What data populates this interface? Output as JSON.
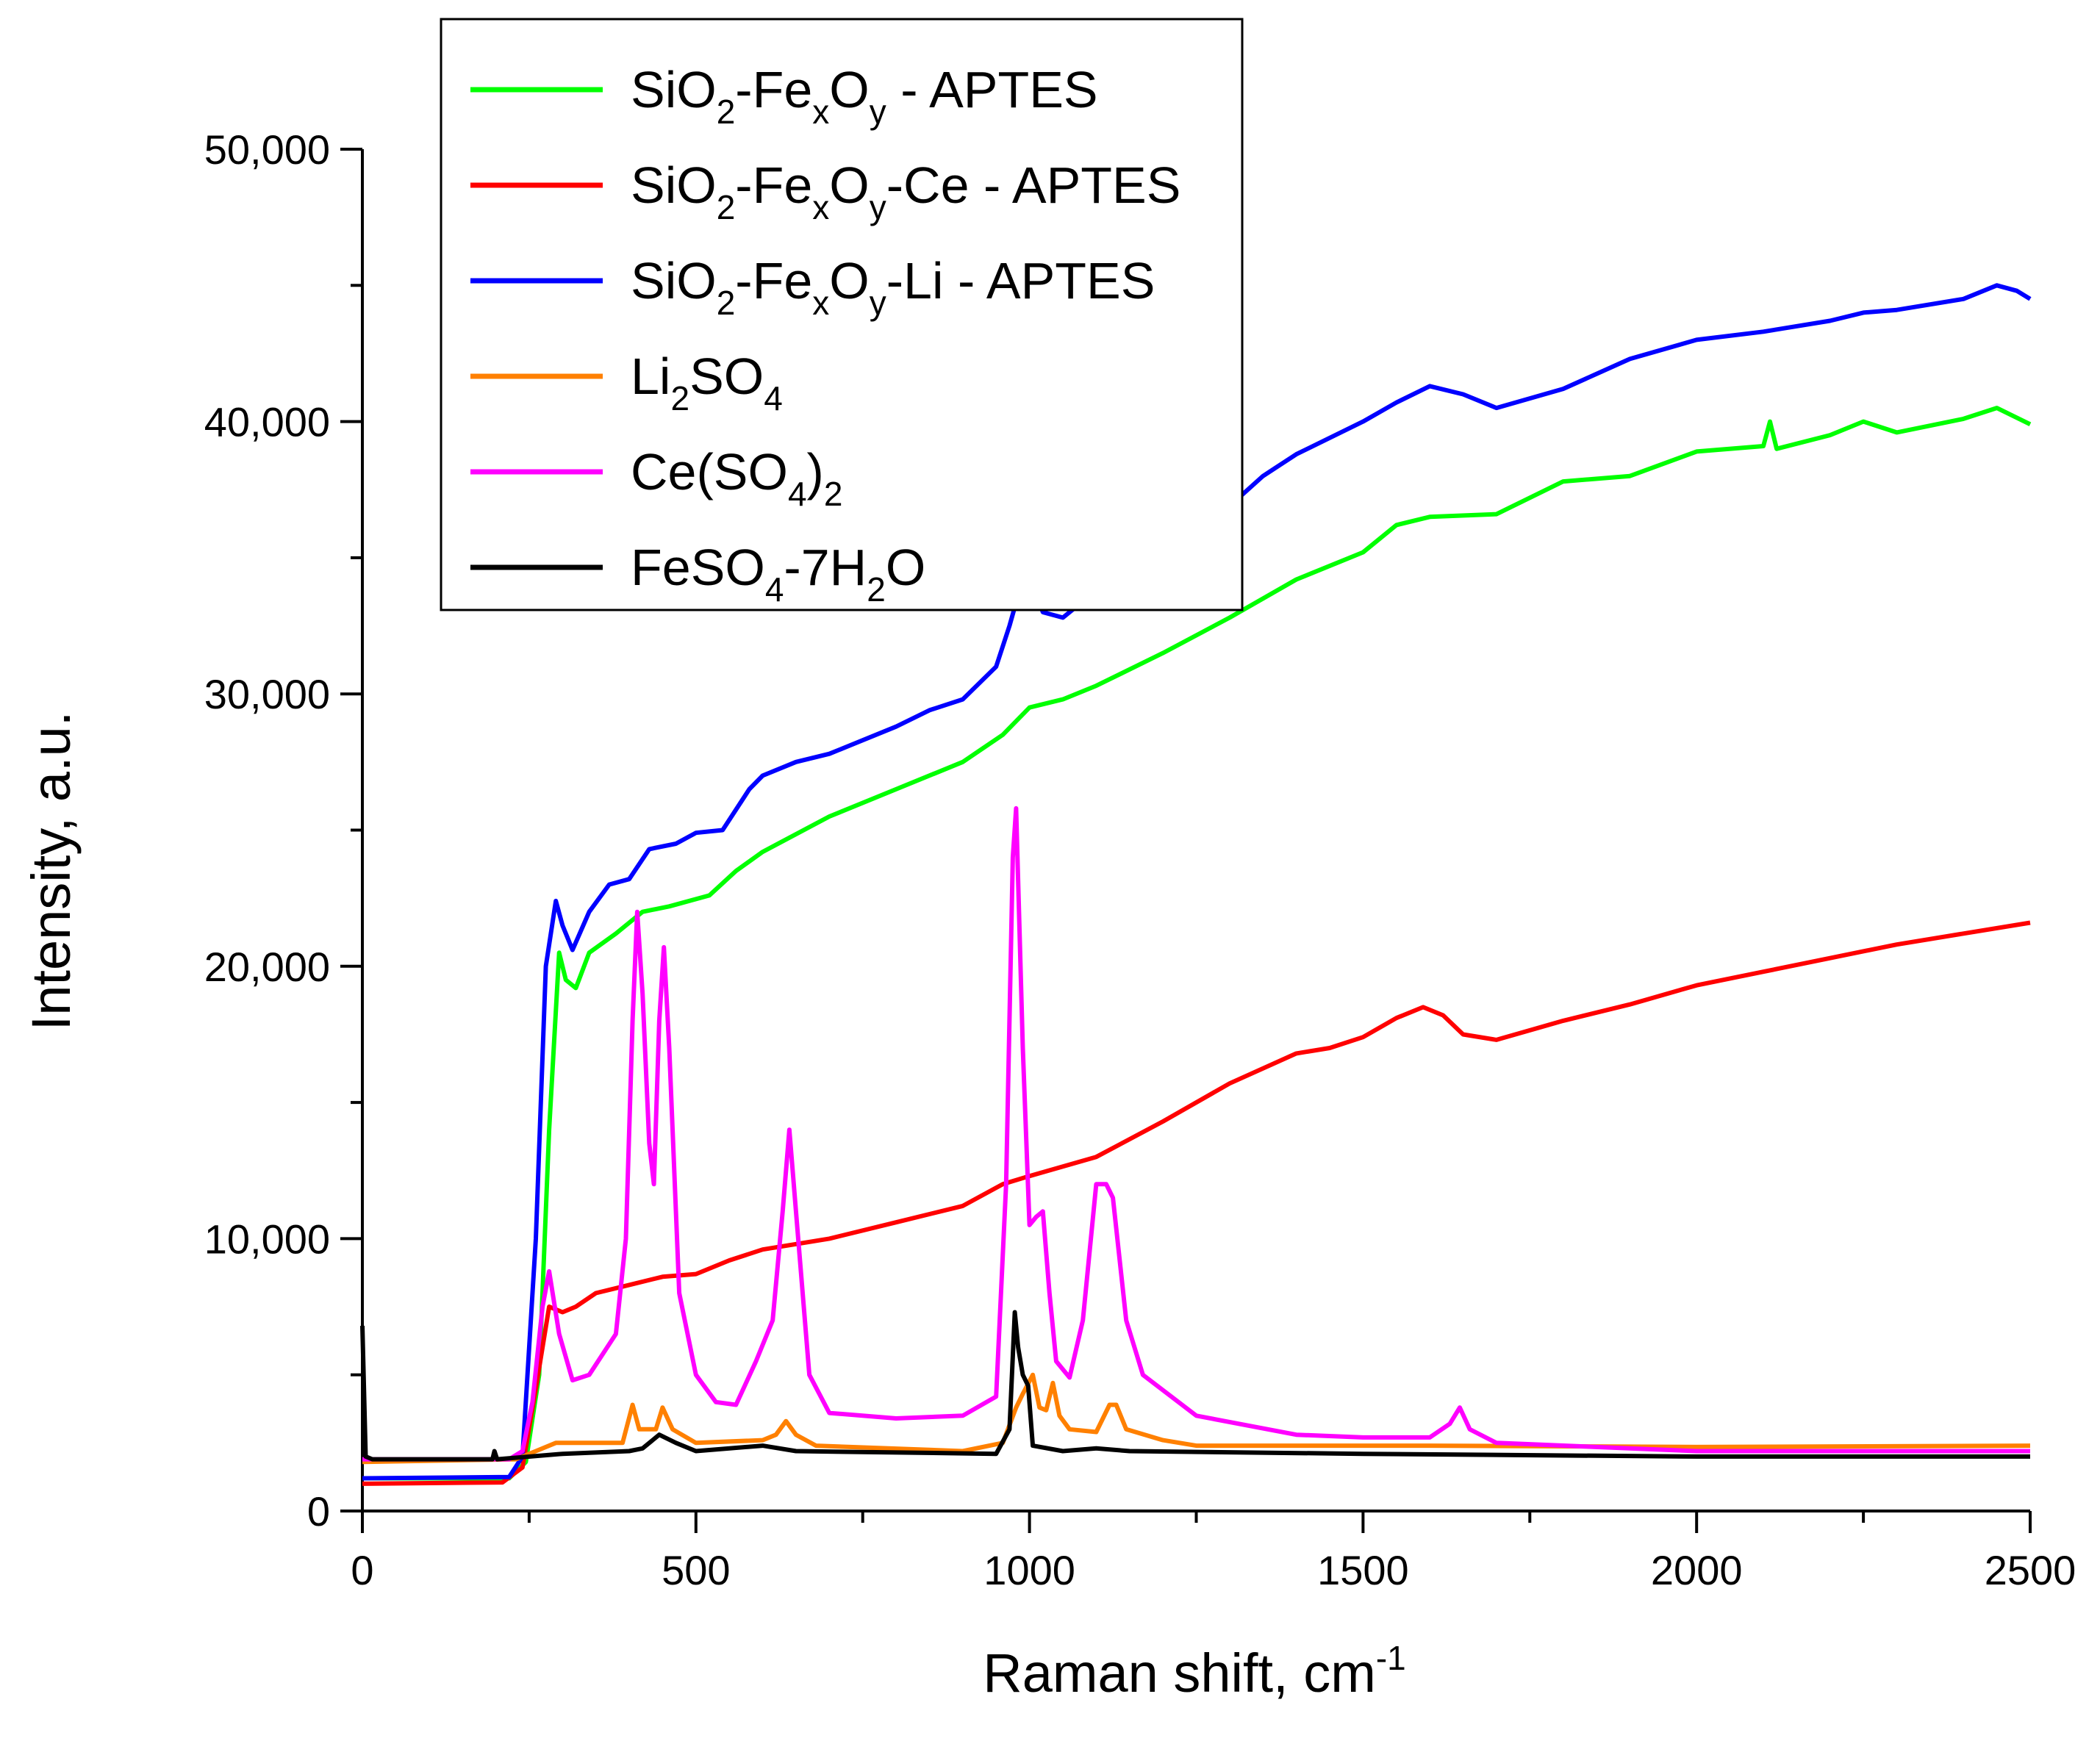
{
  "chart_data": {
    "type": "line",
    "xlabel": "Raman shift, cm",
    "xlabel_superscript": "-1",
    "ylabel": "Intensity, a.u.",
    "xlim": [
      0,
      2500
    ],
    "ylim": [
      0,
      50000
    ],
    "x_ticks": [
      0,
      500,
      1000,
      1500,
      2000,
      2500
    ],
    "x_tick_labels": [
      "0",
      "500",
      "1000",
      "1500",
      "2000",
      "2500"
    ],
    "y_ticks": [
      0,
      10000,
      20000,
      30000,
      40000,
      50000
    ],
    "y_tick_labels": [
      "0",
      "10,000",
      "20,000",
      "30,000",
      "40,000",
      "50,000"
    ],
    "grid": false,
    "legend_position": "top-center",
    "series": [
      {
        "name": "SiO2-FexOy - APTES",
        "label_parts": [
          [
            "SiO",
            ""
          ],
          [
            "2",
            "sub"
          ],
          [
            "-Fe",
            ""
          ],
          [
            "x",
            "sub"
          ],
          [
            "O",
            ""
          ],
          [
            "y",
            "sub"
          ],
          [
            " - APTES",
            ""
          ]
        ],
        "color": "#00ff00",
        "points": [
          [
            0,
            1200
          ],
          [
            220,
            1200
          ],
          [
            245,
            1800
          ],
          [
            265,
            5000
          ],
          [
            280,
            14000
          ],
          [
            295,
            20500
          ],
          [
            305,
            19500
          ],
          [
            320,
            19200
          ],
          [
            340,
            20500
          ],
          [
            380,
            21200
          ],
          [
            420,
            22000
          ],
          [
            460,
            22200
          ],
          [
            520,
            22600
          ],
          [
            560,
            23500
          ],
          [
            600,
            24200
          ],
          [
            700,
            25500
          ],
          [
            800,
            26500
          ],
          [
            900,
            27500
          ],
          [
            960,
            28500
          ],
          [
            1000,
            29500
          ],
          [
            1050,
            29800
          ],
          [
            1100,
            30300
          ],
          [
            1200,
            31500
          ],
          [
            1300,
            32800
          ],
          [
            1400,
            34200
          ],
          [
            1500,
            35200
          ],
          [
            1550,
            36200
          ],
          [
            1600,
            36500
          ],
          [
            1700,
            36600
          ],
          [
            1800,
            37800
          ],
          [
            1900,
            38000
          ],
          [
            2000,
            38900
          ],
          [
            2100,
            39100
          ],
          [
            2110,
            40000
          ],
          [
            2120,
            39000
          ],
          [
            2200,
            39500
          ],
          [
            2250,
            40000
          ],
          [
            2300,
            39600
          ],
          [
            2400,
            40100
          ],
          [
            2450,
            40500
          ],
          [
            2500,
            39900
          ]
        ]
      },
      {
        "name": "SiO2-FexOy-Ce - APTES",
        "label_parts": [
          [
            "SiO",
            ""
          ],
          [
            "2",
            "sub"
          ],
          [
            "-Fe",
            ""
          ],
          [
            "x",
            "sub"
          ],
          [
            "O",
            ""
          ],
          [
            "y",
            "sub"
          ],
          [
            "-Ce - APTES",
            ""
          ]
        ],
        "color": "#ff0000",
        "points": [
          [
            0,
            1000
          ],
          [
            210,
            1050
          ],
          [
            240,
            1600
          ],
          [
            260,
            4500
          ],
          [
            280,
            7500
          ],
          [
            300,
            7300
          ],
          [
            320,
            7500
          ],
          [
            350,
            8000
          ],
          [
            400,
            8300
          ],
          [
            450,
            8600
          ],
          [
            500,
            8700
          ],
          [
            550,
            9200
          ],
          [
            600,
            9600
          ],
          [
            700,
            10000
          ],
          [
            800,
            10600
          ],
          [
            900,
            11200
          ],
          [
            960,
            12000
          ],
          [
            1000,
            12300
          ],
          [
            1100,
            13000
          ],
          [
            1200,
            14300
          ],
          [
            1300,
            15700
          ],
          [
            1400,
            16800
          ],
          [
            1450,
            17000
          ],
          [
            1500,
            17400
          ],
          [
            1550,
            18100
          ],
          [
            1590,
            18500
          ],
          [
            1620,
            18200
          ],
          [
            1650,
            17500
          ],
          [
            1700,
            17300
          ],
          [
            1800,
            18000
          ],
          [
            1900,
            18600
          ],
          [
            2000,
            19300
          ],
          [
            2100,
            19800
          ],
          [
            2200,
            20300
          ],
          [
            2300,
            20800
          ],
          [
            2400,
            21200
          ],
          [
            2500,
            21600
          ]
        ]
      },
      {
        "name": "SiO2-FexOy-Li - APTES",
        "label_parts": [
          [
            "SiO",
            ""
          ],
          [
            "2",
            "sub"
          ],
          [
            "-Fe",
            ""
          ],
          [
            "x",
            "sub"
          ],
          [
            "O",
            ""
          ],
          [
            "y",
            "sub"
          ],
          [
            "-Li - APTES",
            ""
          ]
        ],
        "color": "#0000ff",
        "points": [
          [
            0,
            1200
          ],
          [
            220,
            1250
          ],
          [
            240,
            2000
          ],
          [
            260,
            10000
          ],
          [
            275,
            20000
          ],
          [
            290,
            22400
          ],
          [
            300,
            21500
          ],
          [
            315,
            20600
          ],
          [
            340,
            22000
          ],
          [
            370,
            23000
          ],
          [
            400,
            23200
          ],
          [
            430,
            24300
          ],
          [
            470,
            24500
          ],
          [
            500,
            24900
          ],
          [
            540,
            25000
          ],
          [
            580,
            26500
          ],
          [
            600,
            27000
          ],
          [
            650,
            27500
          ],
          [
            700,
            27800
          ],
          [
            800,
            28800
          ],
          [
            850,
            29400
          ],
          [
            900,
            29800
          ],
          [
            950,
            31000
          ],
          [
            970,
            32500
          ],
          [
            985,
            33800
          ],
          [
            995,
            33500
          ],
          [
            1000,
            34300
          ],
          [
            1020,
            33000
          ],
          [
            1050,
            32800
          ],
          [
            1100,
            33800
          ],
          [
            1200,
            35300
          ],
          [
            1300,
            36900
          ],
          [
            1350,
            38000
          ],
          [
            1400,
            38800
          ],
          [
            1500,
            40000
          ],
          [
            1550,
            40700
          ],
          [
            1600,
            41300
          ],
          [
            1650,
            41000
          ],
          [
            1700,
            40500
          ],
          [
            1800,
            41200
          ],
          [
            1900,
            42300
          ],
          [
            2000,
            43000
          ],
          [
            2100,
            43300
          ],
          [
            2200,
            43700
          ],
          [
            2250,
            44000
          ],
          [
            2300,
            44100
          ],
          [
            2400,
            44500
          ],
          [
            2450,
            45000
          ],
          [
            2480,
            44800
          ],
          [
            2500,
            44500
          ]
        ]
      },
      {
        "name": "Li2SO4",
        "label_parts": [
          [
            "Li",
            ""
          ],
          [
            "2",
            "sub"
          ],
          [
            "SO",
            ""
          ],
          [
            "4",
            "sub"
          ]
        ],
        "color": "#ff8000",
        "points": [
          [
            0,
            1800
          ],
          [
            230,
            1900
          ],
          [
            260,
            2200
          ],
          [
            290,
            2500
          ],
          [
            390,
            2500
          ],
          [
            405,
            3900
          ],
          [
            415,
            3000
          ],
          [
            440,
            3000
          ],
          [
            450,
            3800
          ],
          [
            465,
            3000
          ],
          [
            500,
            2500
          ],
          [
            600,
            2600
          ],
          [
            620,
            2800
          ],
          [
            635,
            3300
          ],
          [
            650,
            2800
          ],
          [
            680,
            2400
          ],
          [
            900,
            2200
          ],
          [
            960,
            2500
          ],
          [
            980,
            3800
          ],
          [
            990,
            4300
          ],
          [
            1005,
            5000
          ],
          [
            1015,
            3800
          ],
          [
            1025,
            3700
          ],
          [
            1035,
            4700
          ],
          [
            1045,
            3500
          ],
          [
            1060,
            3000
          ],
          [
            1100,
            2900
          ],
          [
            1120,
            3900
          ],
          [
            1130,
            3900
          ],
          [
            1145,
            3000
          ],
          [
            1200,
            2600
          ],
          [
            1250,
            2400
          ],
          [
            1600,
            2400
          ],
          [
            2000,
            2350
          ],
          [
            2500,
            2400
          ]
        ]
      },
      {
        "name": "Ce(SO4)2",
        "label_parts": [
          [
            "Ce(SO",
            ""
          ],
          [
            "4",
            "sub"
          ],
          [
            ")",
            ""
          ],
          [
            "2",
            "sub"
          ]
        ],
        "color": "#ff00ff",
        "points": [
          [
            0,
            1900
          ],
          [
            220,
            1900
          ],
          [
            240,
            2200
          ],
          [
            255,
            4000
          ],
          [
            270,
            7500
          ],
          [
            280,
            8800
          ],
          [
            295,
            6500
          ],
          [
            315,
            4800
          ],
          [
            340,
            5000
          ],
          [
            380,
            6500
          ],
          [
            395,
            10000
          ],
          [
            405,
            18000
          ],
          [
            412,
            22000
          ],
          [
            420,
            19000
          ],
          [
            430,
            13500
          ],
          [
            437,
            12000
          ],
          [
            445,
            18000
          ],
          [
            452,
            20700
          ],
          [
            460,
            17000
          ],
          [
            475,
            8000
          ],
          [
            500,
            5000
          ],
          [
            530,
            4000
          ],
          [
            560,
            3900
          ],
          [
            590,
            5500
          ],
          [
            615,
            7000
          ],
          [
            630,
            11000
          ],
          [
            640,
            14000
          ],
          [
            650,
            11000
          ],
          [
            670,
            5000
          ],
          [
            700,
            3600
          ],
          [
            800,
            3400
          ],
          [
            900,
            3500
          ],
          [
            950,
            4200
          ],
          [
            965,
            12000
          ],
          [
            975,
            24000
          ],
          [
            980,
            25800
          ],
          [
            990,
            17000
          ],
          [
            1000,
            10500
          ],
          [
            1010,
            10800
          ],
          [
            1020,
            11000
          ],
          [
            1030,
            8000
          ],
          [
            1040,
            5500
          ],
          [
            1060,
            4900
          ],
          [
            1080,
            7000
          ],
          [
            1100,
            12000
          ],
          [
            1115,
            12000
          ],
          [
            1125,
            11500
          ],
          [
            1145,
            7000
          ],
          [
            1170,
            5000
          ],
          [
            1250,
            3500
          ],
          [
            1400,
            2800
          ],
          [
            1500,
            2700
          ],
          [
            1600,
            2700
          ],
          [
            1630,
            3200
          ],
          [
            1645,
            3800
          ],
          [
            1660,
            3000
          ],
          [
            1700,
            2500
          ],
          [
            2000,
            2200
          ],
          [
            2500,
            2200
          ]
        ]
      },
      {
        "name": "FeSO4-7H2O",
        "label_parts": [
          [
            "FeSO",
            ""
          ],
          [
            "4",
            "sub"
          ],
          [
            "-7H",
            ""
          ],
          [
            "2",
            "sub"
          ],
          [
            "O",
            ""
          ]
        ],
        "color": "#000000",
        "points": [
          [
            0,
            6800
          ],
          [
            5,
            2000
          ],
          [
            15,
            1900
          ],
          [
            195,
            1900
          ],
          [
            198,
            2200
          ],
          [
            202,
            1900
          ],
          [
            300,
            2100
          ],
          [
            400,
            2200
          ],
          [
            420,
            2300
          ],
          [
            445,
            2800
          ],
          [
            470,
            2500
          ],
          [
            500,
            2200
          ],
          [
            600,
            2400
          ],
          [
            650,
            2200
          ],
          [
            950,
            2100
          ],
          [
            970,
            3000
          ],
          [
            978,
            7300
          ],
          [
            983,
            6000
          ],
          [
            990,
            5000
          ],
          [
            998,
            4600
          ],
          [
            1005,
            2400
          ],
          [
            1050,
            2200
          ],
          [
            1100,
            2300
          ],
          [
            1150,
            2200
          ],
          [
            1500,
            2100
          ],
          [
            2000,
            2000
          ],
          [
            2500,
            2000
          ]
        ]
      }
    ]
  }
}
